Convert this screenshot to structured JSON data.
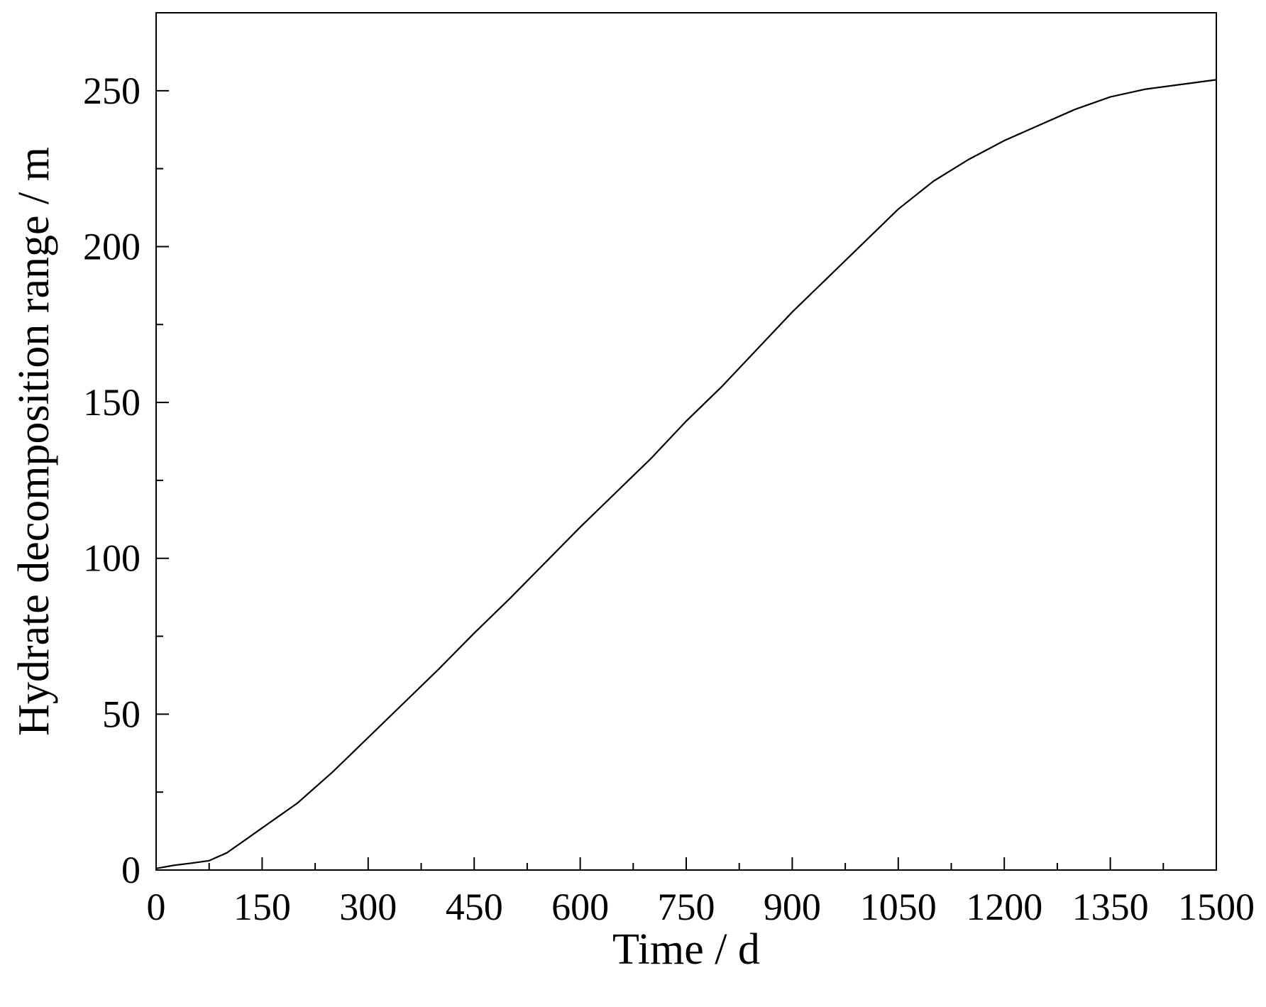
{
  "chart_data": {
    "type": "line",
    "title": "",
    "xlabel": "Time / d",
    "ylabel": "Hydrate decomposition range / m",
    "xlim": [
      0,
      1500
    ],
    "ylim": [
      0,
      275
    ],
    "x_ticks": [
      0,
      150,
      300,
      450,
      600,
      750,
      900,
      1050,
      1200,
      1350,
      1500
    ],
    "x_tick_labels": [
      "0",
      "150",
      "300",
      "450",
      "600",
      "750",
      "900",
      "1050",
      "1200",
      "1350",
      "1500"
    ],
    "y_ticks": [
      0,
      50,
      100,
      150,
      200,
      250
    ],
    "y_tick_labels": [
      "0",
      "50",
      "100",
      "150",
      "200",
      "250"
    ],
    "grid": false,
    "legend": "none",
    "line_color": "#000000",
    "series": [
      {
        "x": [
          0,
          25,
          50,
          75,
          100,
          125,
          150,
          200,
          250,
          300,
          350,
          400,
          450,
          500,
          550,
          600,
          650,
          700,
          750,
          800,
          850,
          900,
          950,
          1000,
          1050,
          1100,
          1150,
          1200,
          1250,
          1300,
          1350,
          1400,
          1450,
          1500
        ],
        "y": [
          0.5,
          1.5,
          2.2,
          3.0,
          5.5,
          9.5,
          13.5,
          21.5,
          31.5,
          42.5,
          53.5,
          64.5,
          76,
          87,
          98.5,
          110,
          121,
          132,
          144,
          155,
          167,
          179,
          190,
          201,
          212,
          221,
          228,
          234,
          239,
          244,
          248,
          250.5,
          252,
          253.5
        ]
      }
    ]
  }
}
